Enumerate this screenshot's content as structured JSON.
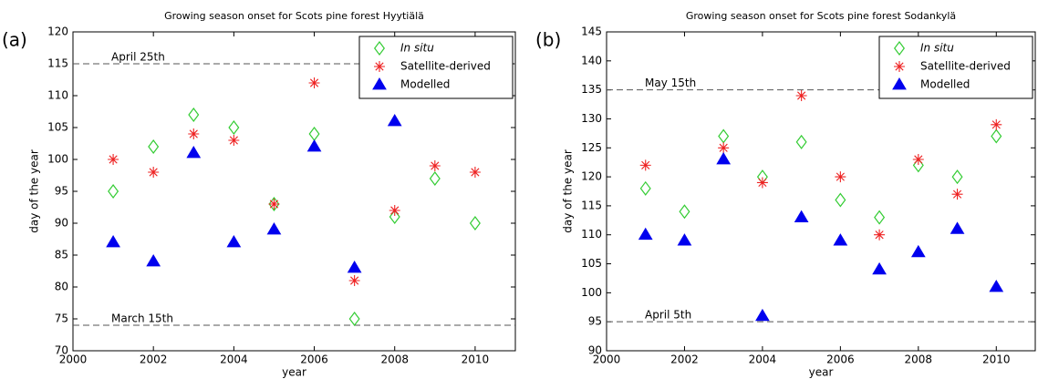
{
  "chart_data": [
    {
      "type": "scatter",
      "panel_label": "(a)",
      "title": "Growing season onset for Scots pine forest Hyytiälä",
      "xlabel": "year",
      "ylabel": "day of the year",
      "x": [
        2001,
        2002,
        2003,
        2004,
        2005,
        2006,
        2007,
        2008,
        2009,
        2010
      ],
      "series": [
        {
          "name": "In situ",
          "marker": "diamond",
          "color": "#33cc33",
          "values": [
            95,
            102,
            107,
            105,
            93,
            104,
            75,
            91,
            97,
            90
          ]
        },
        {
          "name": "Satellite-derived",
          "marker": "star",
          "color": "#ee2222",
          "values": [
            100,
            98,
            104,
            103,
            93,
            112,
            81,
            92,
            99,
            98
          ]
        },
        {
          "name": "Modelled",
          "marker": "triangle",
          "color": "#0000ee",
          "values": [
            87,
            84,
            101,
            87,
            89,
            102,
            83,
            106,
            null,
            null
          ]
        }
      ],
      "ref_lines": [
        {
          "value": 115,
          "label": "April 25th"
        },
        {
          "value": 74,
          "label": "March 15th"
        }
      ],
      "xlim": [
        2000,
        2011
      ],
      "xticks": [
        2000,
        2002,
        2004,
        2006,
        2008,
        2010
      ],
      "ylim": [
        70,
        120
      ],
      "yticks": [
        70,
        75,
        80,
        85,
        90,
        95,
        100,
        105,
        110,
        115,
        120
      ],
      "legend": "upper right"
    },
    {
      "type": "scatter",
      "panel_label": "(b)",
      "title": "Growing season onset for Scots pine forest Sodankylä",
      "xlabel": "year",
      "ylabel": "day of the year",
      "x": [
        2001,
        2002,
        2003,
        2004,
        2005,
        2006,
        2007,
        2008,
        2009,
        2010
      ],
      "series": [
        {
          "name": "In situ",
          "marker": "diamond",
          "color": "#33cc33",
          "values": [
            118,
            114,
            127,
            120,
            126,
            116,
            113,
            122,
            120,
            127
          ]
        },
        {
          "name": "Satellite-derived",
          "marker": "star",
          "color": "#ee2222",
          "values": [
            122,
            null,
            125,
            119,
            134,
            120,
            110,
            123,
            117,
            129
          ]
        },
        {
          "name": "Modelled",
          "marker": "triangle",
          "color": "#0000ee",
          "values": [
            110,
            109,
            123,
            96,
            113,
            109,
            104,
            107,
            111,
            101
          ]
        }
      ],
      "ref_lines": [
        {
          "value": 135,
          "label": "May 15th"
        },
        {
          "value": 95,
          "label": "April 5th"
        }
      ],
      "xlim": [
        2000,
        2011
      ],
      "xticks": [
        2000,
        2002,
        2004,
        2006,
        2008,
        2010
      ],
      "ylim": [
        90,
        145
      ],
      "yticks": [
        90,
        95,
        100,
        105,
        110,
        115,
        120,
        125,
        130,
        135,
        140,
        145
      ],
      "legend": "upper right"
    }
  ]
}
